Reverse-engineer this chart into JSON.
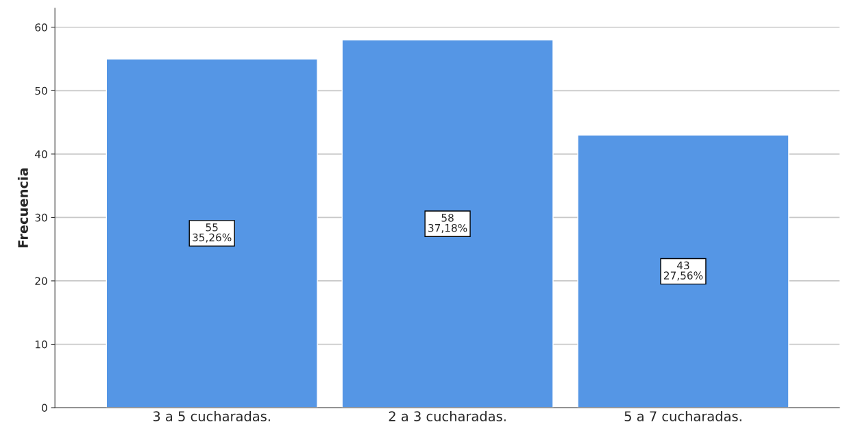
{
  "chart_data": {
    "type": "bar",
    "ylabel": "Frecuencia",
    "categories": [
      "3 a 5 cucharadas.",
      "2 a 3 cucharadas.",
      "5 a 7 cucharadas."
    ],
    "values": [
      55,
      58,
      43
    ],
    "value_labels": [
      "55\n35,26%",
      "58\n37,18%",
      "43\n27,56%"
    ],
    "color": "#5596e5",
    "ylim": [
      0,
      63
    ],
    "yticks": [
      0,
      10,
      20,
      30,
      40,
      50,
      60
    ],
    "grid": "y"
  }
}
